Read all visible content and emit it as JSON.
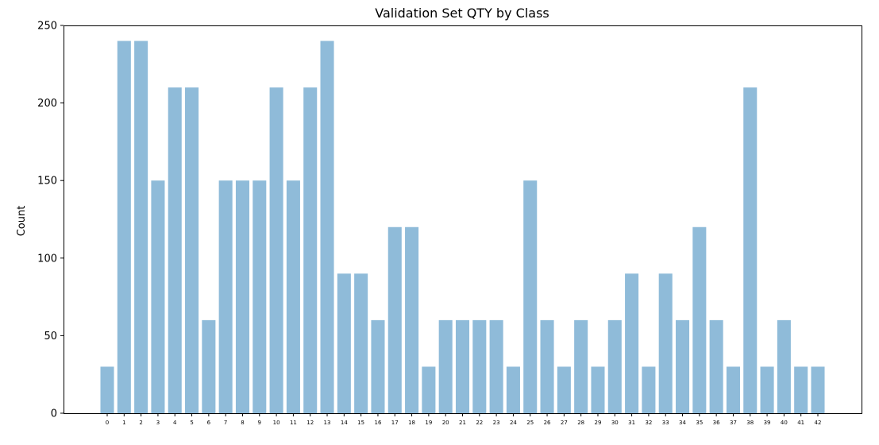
{
  "chart_data": {
    "type": "bar",
    "title": "Validation Set QTY by Class",
    "xlabel": "",
    "ylabel": "Count",
    "categories": [
      "0",
      "1",
      "2",
      "3",
      "4",
      "5",
      "6",
      "7",
      "8",
      "9",
      "10",
      "11",
      "12",
      "13",
      "14",
      "15",
      "16",
      "17",
      "18",
      "19",
      "20",
      "21",
      "22",
      "23",
      "24",
      "25",
      "26",
      "27",
      "28",
      "29",
      "30",
      "31",
      "32",
      "33",
      "34",
      "35",
      "36",
      "37",
      "38",
      "39",
      "40",
      "41",
      "42"
    ],
    "values": [
      30,
      240,
      240,
      150,
      210,
      210,
      60,
      150,
      150,
      150,
      210,
      150,
      210,
      240,
      90,
      90,
      60,
      120,
      120,
      30,
      60,
      60,
      60,
      60,
      30,
      150,
      60,
      30,
      60,
      30,
      60,
      90,
      30,
      90,
      60,
      120,
      60,
      30,
      210,
      30,
      60,
      30,
      30
    ],
    "ylim": [
      0,
      250
    ],
    "yticks": [
      0,
      50,
      100,
      150,
      200,
      250
    ],
    "bar_color": "#8fbbd9",
    "grid": false,
    "legend": "none"
  }
}
